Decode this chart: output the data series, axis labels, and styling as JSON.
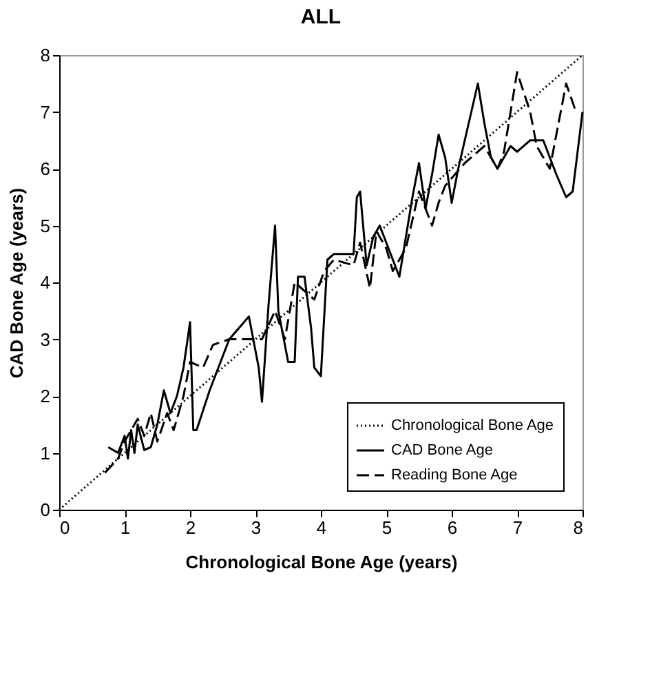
{
  "chart_data": {
    "type": "line",
    "title": "ALL",
    "xlabel": "Chronological Bone Age (years)",
    "ylabel": "CAD Bone Age (years)",
    "xlim": [
      0,
      8
    ],
    "ylim": [
      0,
      8
    ],
    "xticks": [
      0,
      1,
      2,
      3,
      4,
      5,
      6,
      7,
      8
    ],
    "yticks": [
      0,
      1,
      2,
      3,
      4,
      5,
      6,
      7,
      8
    ],
    "grid": false,
    "legend": "bottom right",
    "series": [
      {
        "name": "Chronological Bone Age",
        "color": "#000000",
        "line_style": "dotted",
        "x": [
          0,
          8
        ],
        "values": [
          0,
          8
        ]
      },
      {
        "name": "CAD Bone Age",
        "color": "#000000",
        "line_style": "solid",
        "x": [
          0.75,
          0.9,
          1.0,
          1.05,
          1.1,
          1.15,
          1.2,
          1.3,
          1.4,
          1.5,
          1.6,
          1.7,
          1.8,
          1.9,
          2.0,
          2.05,
          2.1,
          2.3,
          2.6,
          2.9,
          3.05,
          3.1,
          3.2,
          3.3,
          3.35,
          3.5,
          3.6,
          3.65,
          3.75,
          3.85,
          3.9,
          4.0,
          4.1,
          4.2,
          4.5,
          4.55,
          4.6,
          4.7,
          4.8,
          4.9,
          5.0,
          5.2,
          5.4,
          5.5,
          5.6,
          5.7,
          5.8,
          5.9,
          6.0,
          6.1,
          6.3,
          6.4,
          6.5,
          6.6,
          6.7,
          6.9,
          7.0,
          7.2,
          7.4,
          7.6,
          7.75,
          7.85,
          8.0
        ],
        "values": [
          1.1,
          1.0,
          1.3,
          0.9,
          1.4,
          1.0,
          1.5,
          1.05,
          1.1,
          1.5,
          2.1,
          1.7,
          2.0,
          2.5,
          3.3,
          1.4,
          1.4,
          2.1,
          3.0,
          3.4,
          2.5,
          1.9,
          3.6,
          5.0,
          3.5,
          2.6,
          2.6,
          4.1,
          4.1,
          3.2,
          2.5,
          2.35,
          4.4,
          4.5,
          4.5,
          5.5,
          5.6,
          4.3,
          4.8,
          5.0,
          4.7,
          4.1,
          5.5,
          6.1,
          5.3,
          5.9,
          6.6,
          6.2,
          5.4,
          6.0,
          7.0,
          7.5,
          6.8,
          6.2,
          6.0,
          6.4,
          6.3,
          6.5,
          6.5,
          5.9,
          5.5,
          5.6,
          7.0
        ]
      },
      {
        "name": "Reading Bone Age",
        "color": "#000000",
        "line_style": "dashed",
        "x": [
          0.7,
          0.9,
          1.0,
          1.2,
          1.3,
          1.4,
          1.5,
          1.65,
          1.75,
          1.9,
          2.0,
          2.2,
          2.35,
          2.6,
          2.8,
          3.1,
          3.3,
          3.45,
          3.6,
          3.7,
          3.9,
          4.05,
          4.2,
          4.5,
          4.6,
          4.75,
          4.85,
          5.0,
          5.1,
          5.2,
          5.3,
          5.4,
          5.5,
          5.7,
          5.8,
          5.9,
          6.2,
          6.5,
          6.7,
          6.8,
          7.0,
          7.2,
          7.3,
          7.5,
          7.6,
          7.75,
          7.9
        ],
        "values": [
          0.65,
          0.9,
          1.2,
          1.6,
          1.3,
          1.7,
          1.2,
          1.7,
          1.4,
          2.0,
          2.6,
          2.5,
          2.9,
          3.0,
          3.0,
          3.0,
          3.5,
          3.0,
          4.0,
          3.9,
          3.7,
          4.2,
          4.4,
          4.3,
          4.7,
          3.9,
          4.9,
          4.6,
          4.2,
          4.4,
          4.6,
          5.1,
          5.6,
          5.0,
          5.4,
          5.7,
          6.1,
          6.4,
          6.0,
          6.3,
          7.7,
          7.0,
          6.4,
          6.0,
          6.6,
          7.5,
          7.0
        ]
      }
    ]
  }
}
